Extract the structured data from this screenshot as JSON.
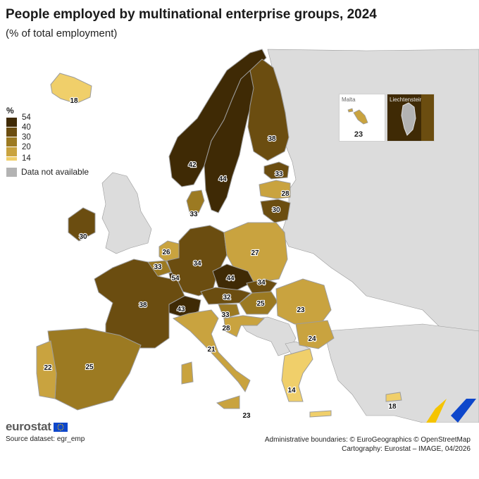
{
  "title": "People employed by multinational enterprise groups, 2024",
  "subtitle": "(% of total employment)",
  "legend": {
    "unit": "%",
    "breaks": [
      "54",
      "40",
      "30",
      "20",
      "14"
    ],
    "colors": [
      "#3f2a05",
      "#6b4d10",
      "#9c7a22",
      "#c9a33f",
      "#f0cf6a"
    ],
    "not_available": "Data not available",
    "not_available_color": "#b3b3b3"
  },
  "insets": {
    "malta": {
      "name": "Malta",
      "value": "23"
    },
    "liechtenstein": {
      "name": "Liechtenstein"
    }
  },
  "map_data": {
    "countries": [
      {
        "id": "IS",
        "value": 18
      },
      {
        "id": "NO",
        "value": 42
      },
      {
        "id": "SE",
        "value": 44
      },
      {
        "id": "FI",
        "value": 38
      },
      {
        "id": "EE",
        "value": 33
      },
      {
        "id": "LV",
        "value": 28
      },
      {
        "id": "LT",
        "value": 30
      },
      {
        "id": "DK",
        "value": 33
      },
      {
        "id": "IE",
        "value": 30
      },
      {
        "id": "NL",
        "value": 26
      },
      {
        "id": "BE",
        "value": 33
      },
      {
        "id": "LU",
        "value": 54
      },
      {
        "id": "DE",
        "value": 34
      },
      {
        "id": "PL",
        "value": 27
      },
      {
        "id": "CZ",
        "value": 44
      },
      {
        "id": "SK",
        "value": 34
      },
      {
        "id": "AT",
        "value": 32
      },
      {
        "id": "HU",
        "value": 25
      },
      {
        "id": "CH",
        "value": 43
      },
      {
        "id": "FR",
        "value": 38
      },
      {
        "id": "SI",
        "value": 33
      },
      {
        "id": "HR",
        "value": 28
      },
      {
        "id": "RO",
        "value": 23
      },
      {
        "id": "BG",
        "value": 24
      },
      {
        "id": "IT",
        "value": 21
      },
      {
        "id": "ES",
        "value": 25
      },
      {
        "id": "PT",
        "value": 22
      },
      {
        "id": "EL",
        "value": 14
      },
      {
        "id": "CY",
        "value": 18
      },
      {
        "id": "MT",
        "value": 23
      }
    ]
  },
  "logo_text": "eurostat",
  "source": "Source dataset: egr_emp",
  "credits": [
    "Administrative boundaries: © EuroGeographics © OpenStreetMap",
    "Cartography: Eurostat – IMAGE, 04/2026"
  ]
}
